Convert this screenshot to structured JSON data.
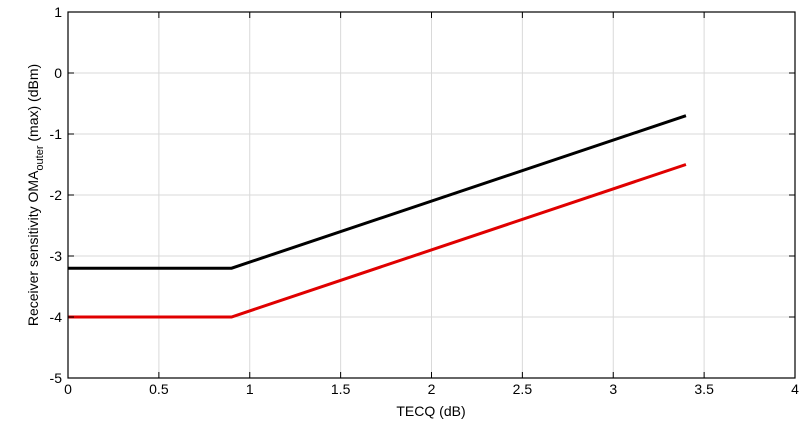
{
  "chart_data": {
    "type": "line",
    "title": "",
    "xlabel": "TECQ (dB)",
    "ylabel": {
      "prefix": "Receiver sensitivity OMA",
      "subscript": "outer",
      "suffix": " (max) (dBm)"
    },
    "xlim": [
      0,
      4
    ],
    "ylim": [
      -5,
      1
    ],
    "xticks": [
      0,
      0.5,
      1,
      1.5,
      2,
      2.5,
      3,
      3.5,
      4
    ],
    "xtick_labels": [
      "0",
      "0.5",
      "1",
      "1.5",
      "2",
      "2.5",
      "3",
      "3.5",
      "4"
    ],
    "yticks": [
      -5,
      -4,
      -3,
      -2,
      -1,
      0,
      1
    ],
    "ytick_labels": [
      "-5",
      "-4",
      "-3",
      "-2",
      "-1",
      "0",
      "1"
    ],
    "grid": true,
    "series": [
      {
        "color": "#000000",
        "x": [
          0,
          0.9,
          3.4
        ],
        "y": [
          -3.2,
          -3.2,
          -0.7
        ]
      },
      {
        "color": "#e00000",
        "x": [
          0,
          0.9,
          3.4
        ],
        "y": [
          -4.0,
          -4.0,
          -1.5
        ]
      }
    ]
  }
}
